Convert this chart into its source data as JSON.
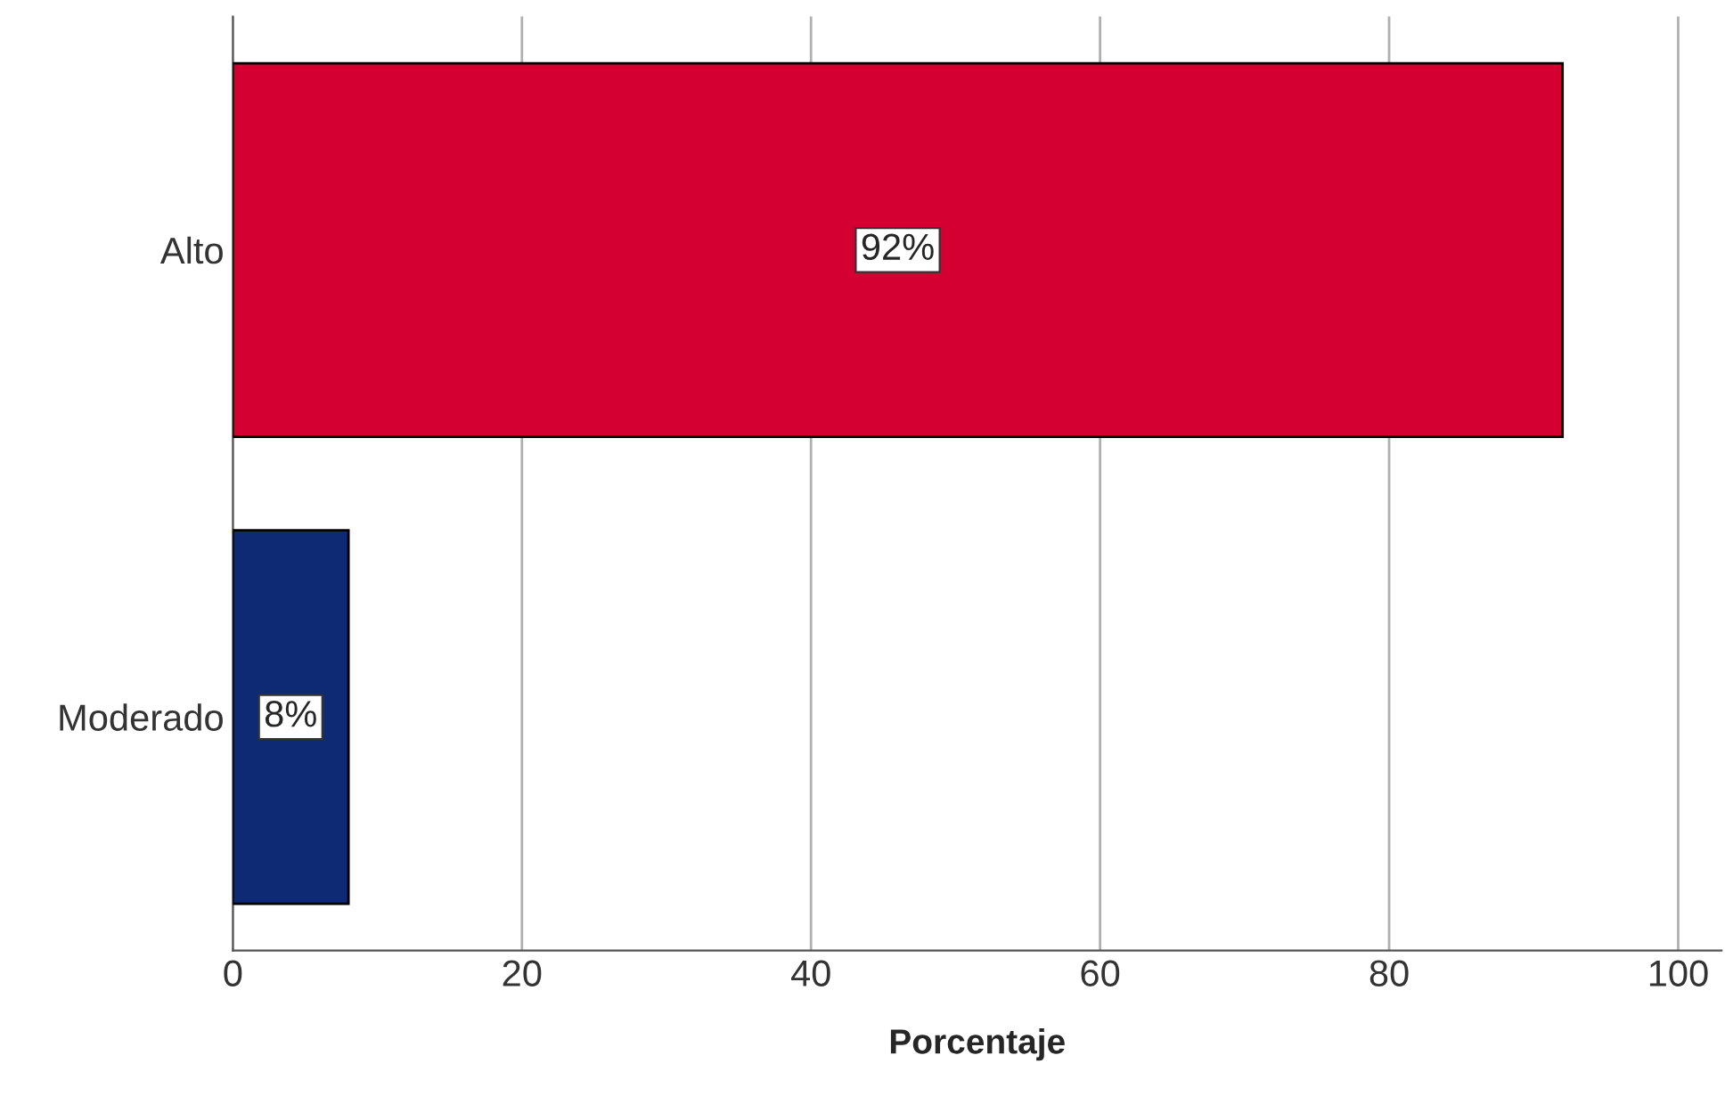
{
  "chart_data": {
    "type": "bar",
    "orientation": "horizontal",
    "xlabel": "Porcentaje",
    "categories": [
      "Alto",
      "Moderado"
    ],
    "values": [
      92,
      8
    ],
    "colors": [
      "#d50032",
      "#0f2a74"
    ],
    "value_labels": [
      "92%",
      "8%"
    ],
    "xlim": [
      0,
      103
    ],
    "xticks": [
      0,
      20,
      40,
      60,
      80,
      100
    ],
    "grid": "x"
  }
}
